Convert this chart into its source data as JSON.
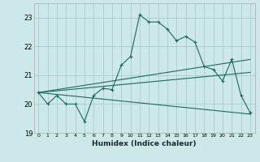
{
  "xlabel": "Humidex (Indice chaleur)",
  "background_color": "#cce8e8",
  "grid_color": "#aacccc",
  "line_color": "#1a6b5a",
  "xlim": [
    -0.5,
    23.5
  ],
  "ylim": [
    19.0,
    23.5
  ],
  "yticks": [
    19,
    20,
    21,
    22,
    23
  ],
  "xticks": [
    0,
    1,
    2,
    3,
    4,
    5,
    6,
    7,
    8,
    9,
    10,
    11,
    12,
    13,
    14,
    15,
    16,
    17,
    18,
    19,
    20,
    21,
    22,
    23
  ],
  "series1_x": [
    0,
    1,
    2,
    3,
    4,
    5,
    6,
    7,
    8,
    9,
    10,
    11,
    12,
    13,
    14,
    15,
    16,
    17,
    18,
    19,
    20,
    21,
    22,
    23
  ],
  "series1_y": [
    20.4,
    20.0,
    20.3,
    20.0,
    20.0,
    19.4,
    20.3,
    20.55,
    20.5,
    21.35,
    21.65,
    23.1,
    22.85,
    22.85,
    22.6,
    22.2,
    22.35,
    22.15,
    21.3,
    21.2,
    20.8,
    21.55,
    20.3,
    19.7
  ],
  "line2_x0": 0,
  "line2_x1": 23,
  "line2_y0": 20.4,
  "line2_y1": 21.55,
  "line3_x0": 0,
  "line3_x1": 23,
  "line3_y0": 20.4,
  "line3_y1": 21.1,
  "line4_x0": 0,
  "line4_x1": 23,
  "line4_y0": 20.4,
  "line4_y1": 19.65
}
